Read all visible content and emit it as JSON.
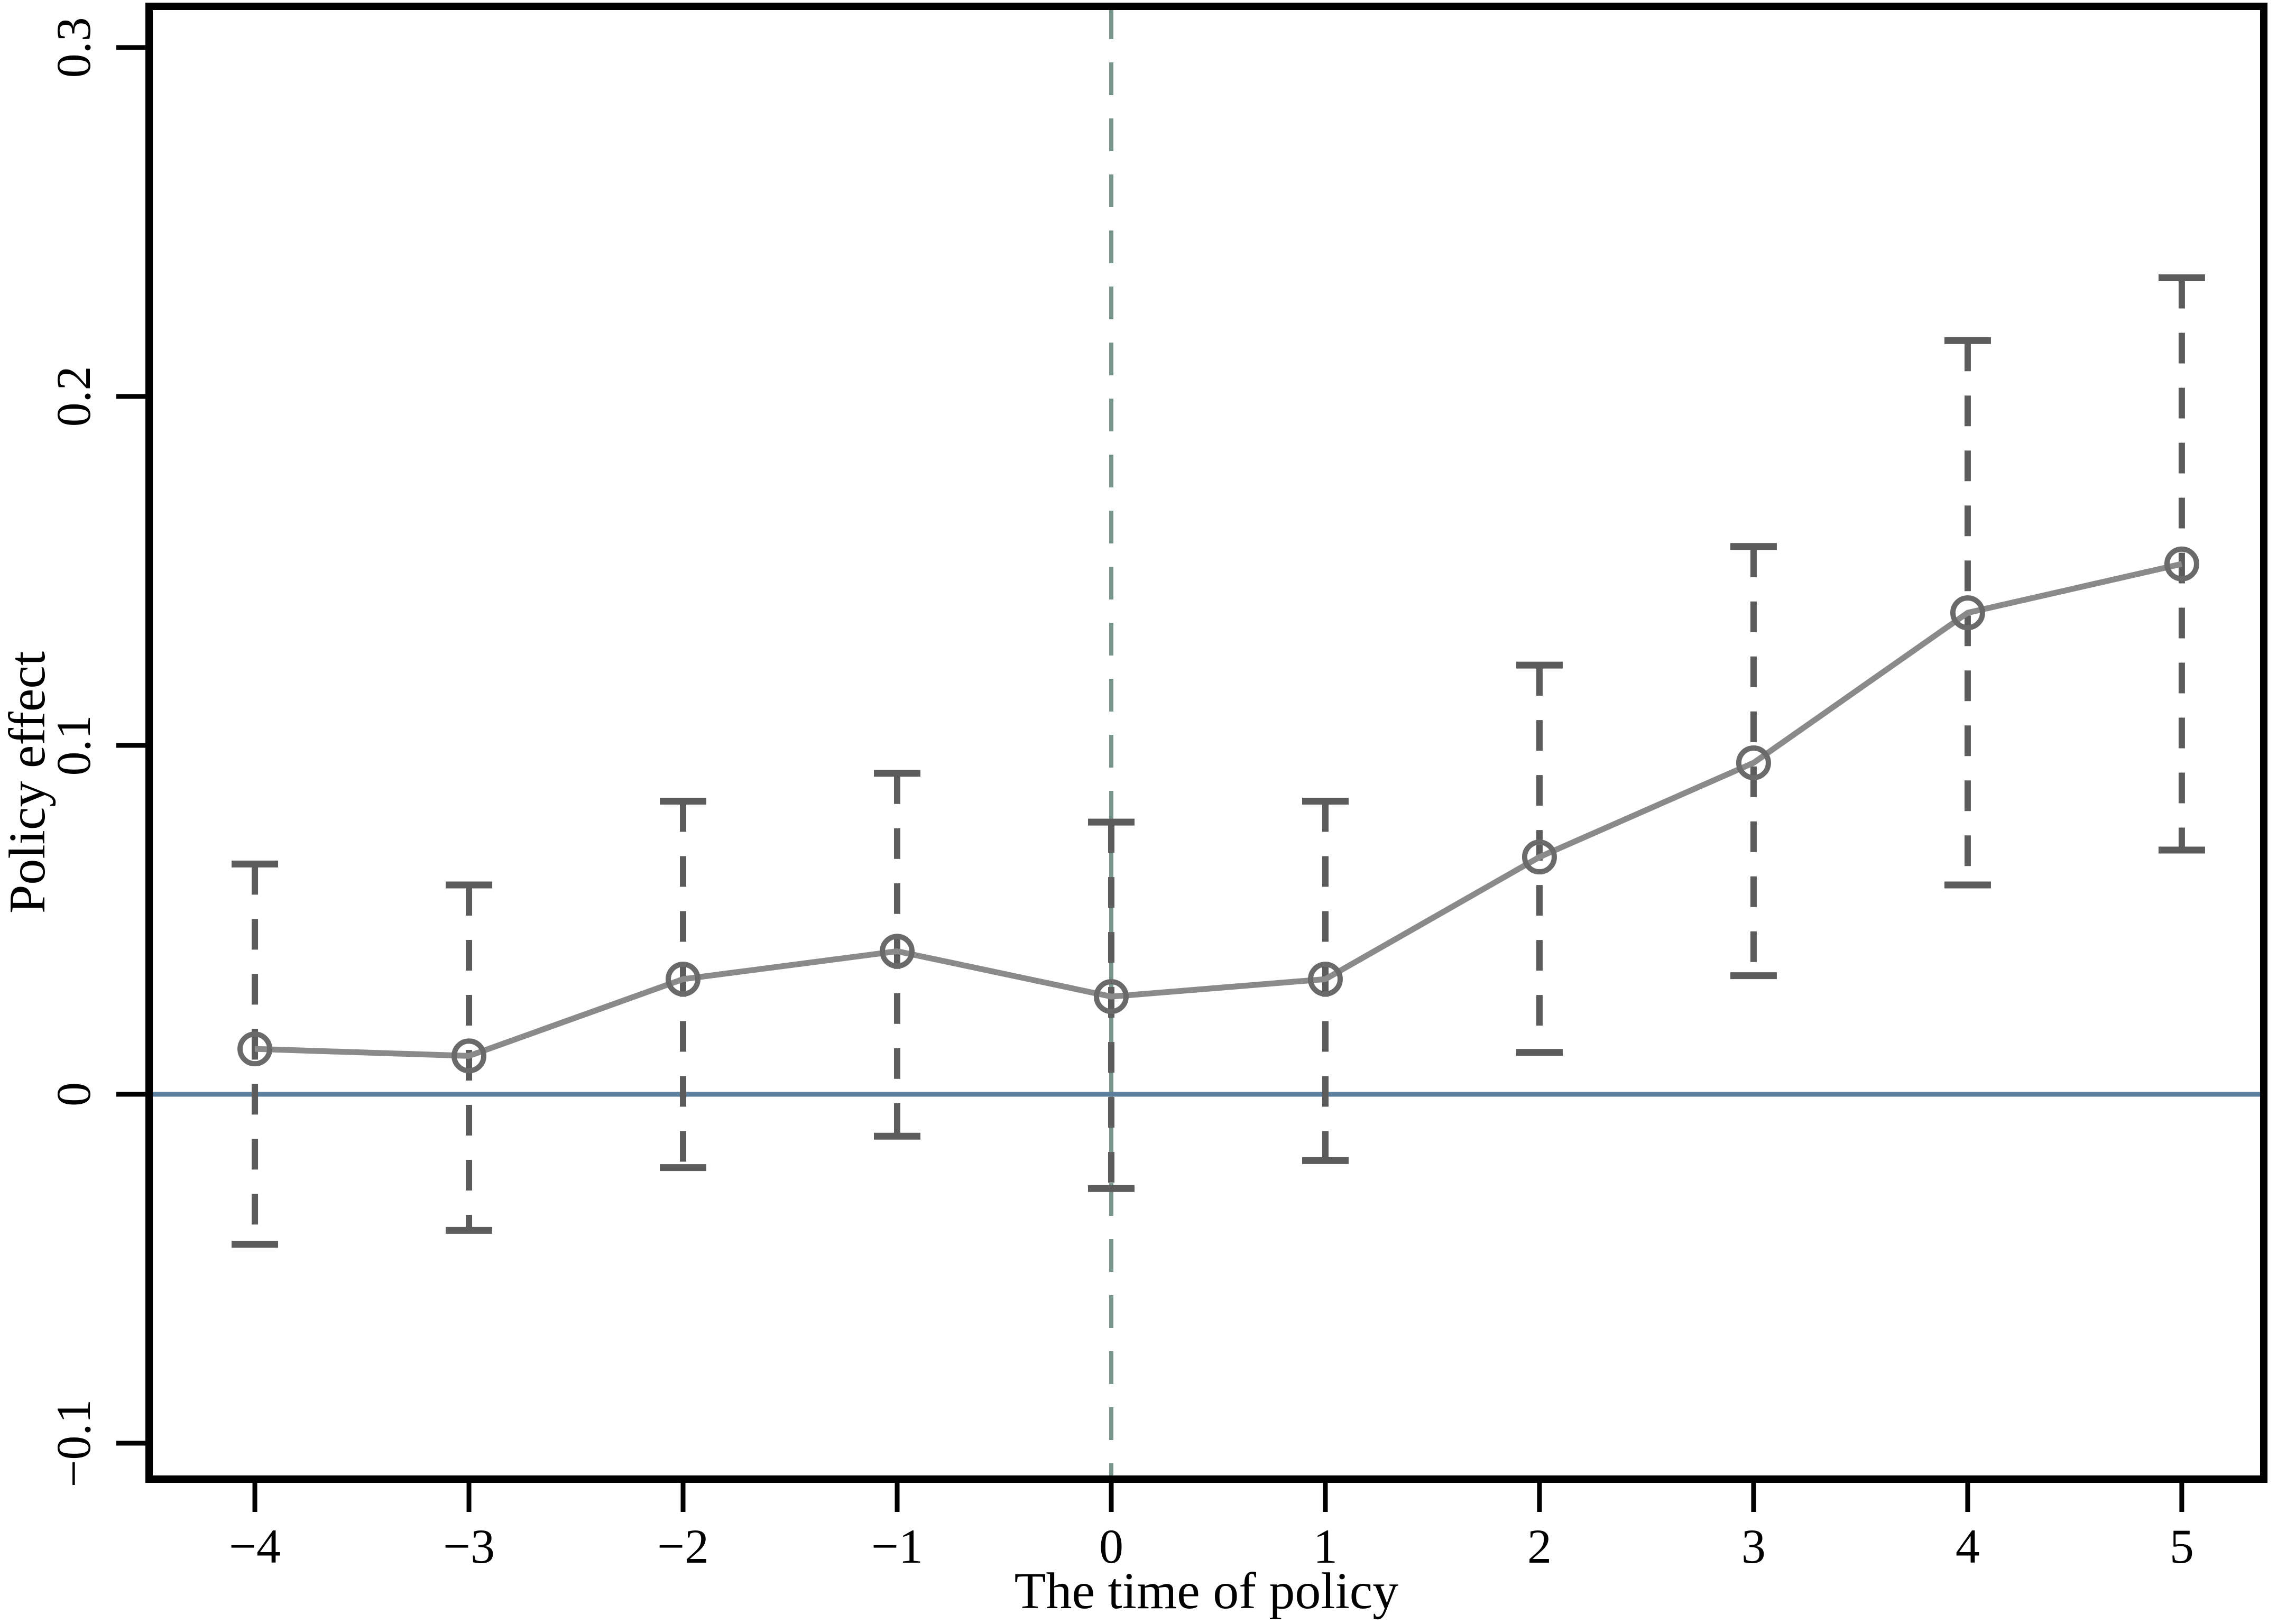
{
  "chart_data": {
    "type": "line",
    "title": "",
    "xlabel": "The time of policy",
    "ylabel": "Policy effect",
    "x": [
      -4,
      -3,
      -2,
      -1,
      0,
      1,
      2,
      3,
      4,
      5
    ],
    "series": [
      {
        "name": "point-estimate",
        "values": [
          0.013,
          0.011,
          0.033,
          0.041,
          0.028,
          0.033,
          0.068,
          0.095,
          0.138,
          0.152
        ]
      },
      {
        "name": "ci-lower",
        "values": [
          -0.043,
          -0.039,
          -0.021,
          -0.012,
          -0.027,
          -0.019,
          0.012,
          0.034,
          0.06,
          0.07
        ]
      },
      {
        "name": "ci-upper",
        "values": [
          0.066,
          0.06,
          0.084,
          0.092,
          0.078,
          0.084,
          0.123,
          0.157,
          0.216,
          0.234
        ]
      }
    ],
    "x_ticks": [
      {
        "value": -4,
        "label": "−4"
      },
      {
        "value": -3,
        "label": "−3"
      },
      {
        "value": -2,
        "label": "−2"
      },
      {
        "value": -1,
        "label": "−1"
      },
      {
        "value": 0,
        "label": "0"
      },
      {
        "value": 1,
        "label": "1"
      },
      {
        "value": 2,
        "label": "2"
      },
      {
        "value": 3,
        "label": "3"
      },
      {
        "value": 4,
        "label": "4"
      },
      {
        "value": 5,
        "label": "5"
      }
    ],
    "y_ticks": [
      {
        "value": 0.3,
        "label": "0.3"
      },
      {
        "value": 0.2,
        "label": "0.2"
      },
      {
        "value": 0.1,
        "label": "0.1"
      },
      {
        "value": 0.0,
        "label": "0"
      },
      {
        "value": -0.1,
        "label": "−0.1"
      }
    ],
    "xlim": [
      -4.494,
      5.383
    ],
    "ylim": [
      -0.1103,
      0.3118
    ],
    "grid": false,
    "legend": null,
    "marker": "hollow-circle",
    "reference_lines": {
      "horizontal_zero": {
        "value": 0,
        "style": "solid"
      },
      "vertical_policy_start": {
        "value": 0,
        "style": "dashed"
      }
    },
    "colors": {
      "background": "#ffffff",
      "frame": "#000000",
      "series_line": "#8a8a8a",
      "marker": "#6a6a6a",
      "error_bar": "#5c5c5c",
      "zero_line": "#5b7e9c",
      "policy_line": "#78958b",
      "text": "#000000"
    }
  }
}
